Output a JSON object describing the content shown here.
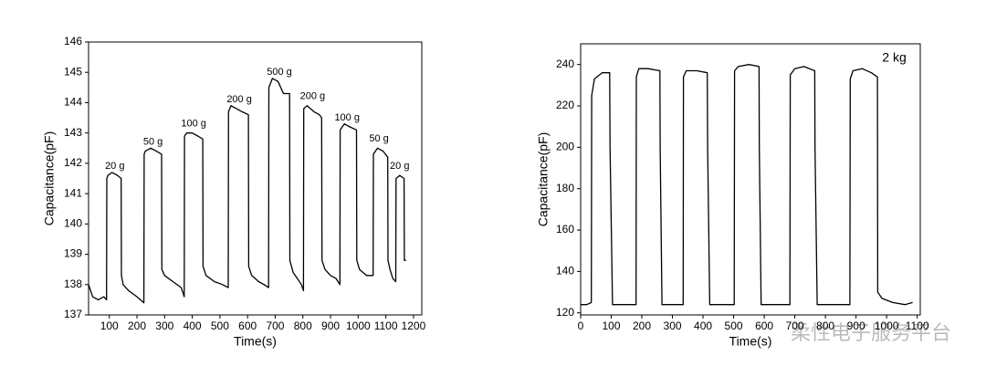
{
  "chart_data": [
    {
      "type": "line",
      "xlabel": "Time(s)",
      "ylabel": "Capacitance(pF)",
      "color": "#000000",
      "xlim": [
        25,
        1230
      ],
      "ylim": [
        137,
        146
      ],
      "xticks": [
        100,
        200,
        300,
        400,
        500,
        600,
        700,
        800,
        900,
        1000,
        1100,
        1200
      ],
      "yticks": [
        137,
        138,
        139,
        140,
        141,
        142,
        143,
        144,
        145,
        146
      ],
      "x": [
        25,
        40,
        60,
        80,
        90,
        91,
        95,
        110,
        130,
        143,
        144,
        150,
        170,
        200,
        225,
        226,
        230,
        250,
        270,
        289,
        290,
        300,
        330,
        360,
        371,
        372,
        380,
        400,
        420,
        438,
        439,
        450,
        480,
        510,
        530,
        531,
        540,
        560,
        580,
        603,
        604,
        615,
        640,
        660,
        676,
        677,
        690,
        710,
        730,
        752,
        753,
        765,
        780,
        795,
        802,
        803,
        815,
        840,
        860,
        868,
        869,
        880,
        900,
        920,
        934,
        935,
        950,
        970,
        994,
        995,
        1005,
        1030,
        1054,
        1055,
        1070,
        1090,
        1107,
        1108,
        1115,
        1125,
        1136,
        1137,
        1150,
        1166,
        1167,
        1173
      ],
      "values": [
        138.0,
        137.6,
        137.5,
        137.6,
        137.5,
        141.5,
        141.6,
        141.7,
        141.6,
        141.5,
        138.3,
        138.0,
        137.8,
        137.6,
        137.4,
        142.3,
        142.4,
        142.5,
        142.4,
        142.3,
        138.5,
        138.3,
        138.1,
        137.9,
        137.6,
        142.9,
        143.0,
        143.0,
        142.9,
        142.8,
        138.6,
        138.3,
        138.1,
        138.0,
        137.9,
        143.7,
        143.9,
        143.8,
        143.7,
        143.6,
        138.6,
        138.3,
        138.1,
        138.0,
        137.9,
        144.5,
        144.8,
        144.7,
        144.3,
        144.3,
        138.8,
        138.4,
        138.2,
        138.0,
        137.8,
        143.8,
        143.9,
        143.7,
        143.6,
        143.5,
        138.8,
        138.5,
        138.3,
        138.2,
        138.0,
        143.1,
        143.3,
        143.2,
        143.1,
        138.8,
        138.5,
        138.3,
        138.3,
        142.3,
        142.5,
        142.4,
        142.2,
        138.8,
        138.5,
        138.2,
        138.1,
        141.5,
        141.6,
        141.5,
        138.8,
        138.8
      ],
      "annotations": [
        {
          "text": "20 g",
          "x": 120,
          "y": 141.9
        },
        {
          "text": "50 g",
          "x": 258,
          "y": 142.7
        },
        {
          "text": "100 g",
          "x": 405,
          "y": 143.3
        },
        {
          "text": "200 g",
          "x": 570,
          "y": 144.1
        },
        {
          "text": "500 g",
          "x": 715,
          "y": 145.0
        },
        {
          "text": "200 g",
          "x": 835,
          "y": 144.2
        },
        {
          "text": "100 g",
          "x": 960,
          "y": 143.5
        },
        {
          "text": "50 g",
          "x": 1075,
          "y": 142.8
        },
        {
          "text": "20 g",
          "x": 1150,
          "y": 141.9
        }
      ]
    },
    {
      "type": "line",
      "xlabel": "Time(s)",
      "ylabel": "Capacitance(pF)",
      "color": "#000000",
      "xlim": [
        0,
        1110
      ],
      "ylim": [
        119,
        250
      ],
      "xticks": [
        0,
        100,
        200,
        300,
        400,
        500,
        600,
        700,
        800,
        900,
        1000,
        1100
      ],
      "yticks": [
        120,
        140,
        160,
        180,
        200,
        220,
        240
      ],
      "x": [
        0,
        20,
        35,
        36,
        45,
        70,
        95,
        96,
        104,
        105,
        140,
        181,
        182,
        190,
        220,
        259,
        260,
        266,
        267,
        300,
        335,
        336,
        345,
        380,
        414,
        415,
        422,
        423,
        460,
        502,
        503,
        515,
        550,
        583,
        584,
        590,
        591,
        640,
        684,
        685,
        700,
        730,
        765,
        766,
        773,
        774,
        820,
        880,
        881,
        890,
        920,
        950,
        970,
        971,
        985,
        1020,
        1060,
        1085
      ],
      "values": [
        124,
        124,
        125,
        225,
        233,
        236,
        236,
        200,
        124,
        124,
        124,
        124,
        234,
        238,
        238,
        237,
        200,
        124,
        124,
        124,
        124,
        234,
        237,
        237,
        236,
        200,
        124,
        124,
        124,
        124,
        237,
        239,
        240,
        239,
        200,
        124,
        124,
        124,
        124,
        235,
        238,
        239,
        237,
        200,
        124,
        124,
        124,
        124,
        233,
        237,
        238,
        236,
        234,
        130,
        127,
        125,
        124,
        125
      ],
      "annotations": [
        {
          "text": "2 kg",
          "x": 1025,
          "y": 243
        }
      ]
    }
  ],
  "watermark": "柔性电子服务平台"
}
